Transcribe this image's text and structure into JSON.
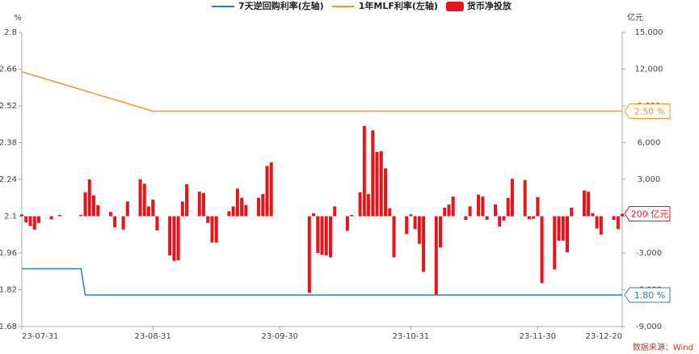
{
  "chart_data": {
    "type": "bar-line",
    "y_unit": "%",
    "y2_unit": "亿元",
    "source": "数据来源：Wind",
    "xlim": [
      0,
      142
    ],
    "xticks": [
      {
        "value": 0,
        "label": "23-07-31"
      },
      {
        "value": 31,
        "label": "23-08-31"
      },
      {
        "value": 61,
        "label": "23-09-30"
      },
      {
        "value": 92,
        "label": "23-10-31"
      },
      {
        "value": 122,
        "label": "23-11-30"
      },
      {
        "value": 142,
        "label": "23-12-20"
      }
    ],
    "ylim": [
      1.68,
      2.8
    ],
    "yticks": [
      1.68,
      1.82,
      1.96,
      2.1,
      2.24,
      2.38,
      2.52,
      2.66,
      2.8
    ],
    "y2lim": [
      -9000,
      15000
    ],
    "y2ticks": [
      {
        "value": -9000,
        "label": "-9,000"
      },
      {
        "value": -6000,
        "label": "-6,000"
      },
      {
        "value": -3000,
        "label": "-3,000"
      },
      0,
      {
        "value": 3000,
        "label": "3,000"
      },
      {
        "value": 6000,
        "label": "6,000"
      },
      {
        "value": 9000,
        "label": "9,000"
      },
      {
        "value": 12000,
        "label": "12,000"
      },
      {
        "value": 15000,
        "label": "15,000"
      }
    ],
    "series": [
      {
        "name": "7天逆回购利率(左轴)",
        "type": "line",
        "color": "#2e7cb8",
        "x": [
          0,
          14,
          15,
          142
        ],
        "values": [
          1.9,
          1.9,
          1.8,
          1.8
        ]
      },
      {
        "name": "1年MLF利率(左轴)",
        "type": "line",
        "color": "#f0962e",
        "x": [
          0,
          31,
          142
        ],
        "values": [
          2.65,
          2.5,
          2.5
        ]
      },
      {
        "name": "货币净投放",
        "type": "bar",
        "axis": "y2",
        "color": "#e8141a",
        "x": [
          0,
          1,
          2,
          3,
          4,
          7,
          9,
          14,
          15,
          16,
          17,
          18,
          21,
          22,
          24,
          25,
          28,
          29,
          30,
          31,
          32,
          35,
          36,
          37,
          38,
          39,
          42,
          43,
          44,
          45,
          46,
          49,
          50,
          51,
          52,
          53,
          56,
          57,
          58,
          59,
          68,
          69,
          70,
          71,
          72,
          73,
          74,
          77,
          78,
          80,
          81,
          82,
          83,
          84,
          85,
          86,
          87,
          88,
          91,
          92,
          93,
          94,
          95,
          98,
          99,
          100,
          101,
          102,
          105,
          106,
          108,
          109,
          110,
          112,
          113,
          114,
          115,
          116,
          119,
          120,
          121,
          122,
          123,
          126,
          127,
          128,
          129,
          130,
          133,
          134,
          135,
          136,
          137,
          140,
          141,
          142
        ],
        "values": [
          150,
          -500,
          -800,
          -1100,
          -550,
          -250,
          100,
          100,
          1950,
          3000,
          1700,
          900,
          350,
          -900,
          -1100,
          1200,
          3000,
          2650,
          800,
          1350,
          -1150,
          -3200,
          -3650,
          -3600,
          1200,
          2600,
          2000,
          1900,
          -550,
          -2150,
          -2150,
          400,
          800,
          2250,
          1500,
          900,
          1500,
          1800,
          4100,
          4400,
          -6250,
          250,
          -3000,
          -3150,
          -3200,
          -3350,
          800,
          -1200,
          100,
          1950,
          7350,
          1800,
          7000,
          5250,
          5300,
          3900,
          650,
          -3350,
          -1450,
          150,
          -1050,
          -2250,
          -4550,
          -6400,
          -2550,
          700,
          950,
          1600,
          -300,
          800,
          1750,
          1600,
          -300,
          950,
          -850,
          -350,
          1500,
          3050,
          2950,
          -250,
          -200,
          1550,
          -5450,
          -4350,
          -2000,
          -2000,
          -2950,
          700,
          2100,
          2000,
          250,
          -1000,
          -1500,
          -300,
          -1050,
          200
        ]
      }
    ],
    "end_labels": [
      {
        "series": 1,
        "value": 2.5,
        "label": "2.50 %"
      },
      {
        "series": 2,
        "value": 200,
        "label": "200 亿元"
      },
      {
        "series": 0,
        "value": 1.8,
        "label": "1.80 %"
      }
    ]
  }
}
